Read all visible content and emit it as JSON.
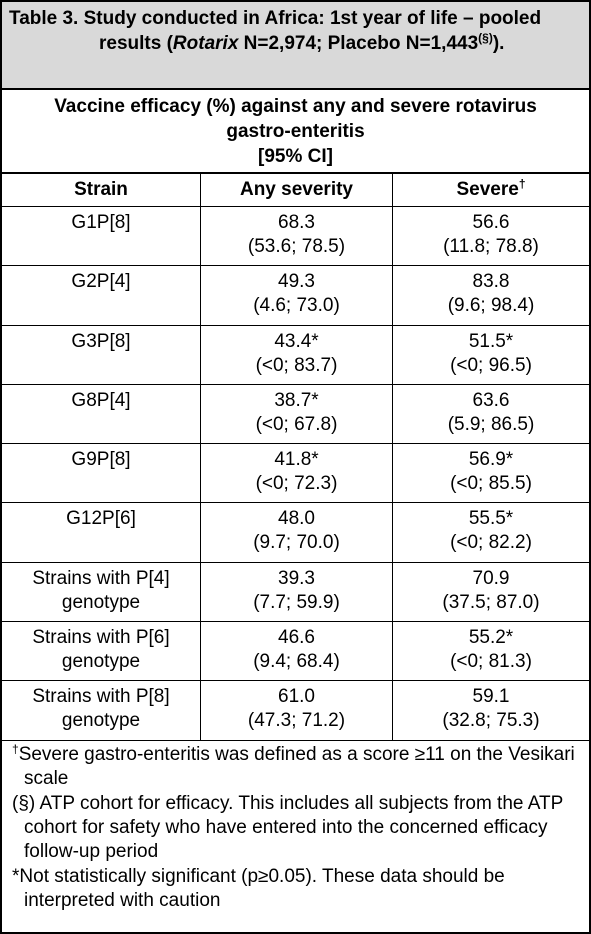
{
  "title": {
    "label": "Table 3.",
    "text": "Study conducted in Africa: 1st year of life – pooled results (",
    "italic": "Rotarix",
    "rest": " N=2,974; Placebo N=1,443",
    "sup": "(§)",
    "end": ")."
  },
  "table": {
    "caption": [
      "Vaccine efficacy (%) against any and severe rotavirus gastro-enteritis",
      "[95% CI]"
    ],
    "columns": [
      "Strain",
      "Any severity",
      "Severe"
    ],
    "column_mark": "†",
    "rows": [
      [
        "G1P[8]",
        "68.3",
        "(53.6; 78.5)",
        "56.6",
        "(11.8; 78.8)"
      ],
      [
        "G2P[4]",
        "49.3",
        "(4.6; 73.0)",
        "83.8",
        "(9.6; 98.4)"
      ],
      [
        "G3P[8]",
        "43.4*",
        "(<0; 83.7)",
        "51.5*",
        "(<0; 96.5)"
      ],
      [
        "G8P[4]",
        "38.7*",
        "(<0; 67.8)",
        "63.6",
        "(5.9; 86.5)"
      ],
      [
        "G9P[8]",
        "41.8*",
        "(<0; 72.3)",
        "56.9*",
        "(<0; 85.5)"
      ],
      [
        "G12P[6]",
        "48.0",
        "(9.7; 70.0)",
        "55.5*",
        "(<0; 82.2)"
      ],
      [
        "Strains with P[4] genotype",
        "39.3",
        "(7.7; 59.9)",
        "70.9",
        "(37.5; 87.0)"
      ],
      [
        "Strains with P[6] genotype",
        "46.6",
        "(9.4; 68.4)",
        "55.2*",
        "(<0; 81.3)"
      ],
      [
        "Strains with P[8] genotype",
        "61.0",
        "(47.3; 71.2)",
        "59.1",
        "(32.8; 75.3)"
      ]
    ]
  },
  "footnotes": [
    {
      "mark": "†",
      "text": "Severe gastro-enteritis was defined as a score ≥11 on the Vesikari scale"
    },
    {
      "mark": "(§)",
      "text": " ATP cohort for efficacy. This includes all subjects from the ATP cohort for safety who have entered into the concerned efficacy follow-up period"
    },
    {
      "mark": "*",
      "text": "Not statistically significant (p≥0.05). These data should be interpreted with caution"
    }
  ]
}
